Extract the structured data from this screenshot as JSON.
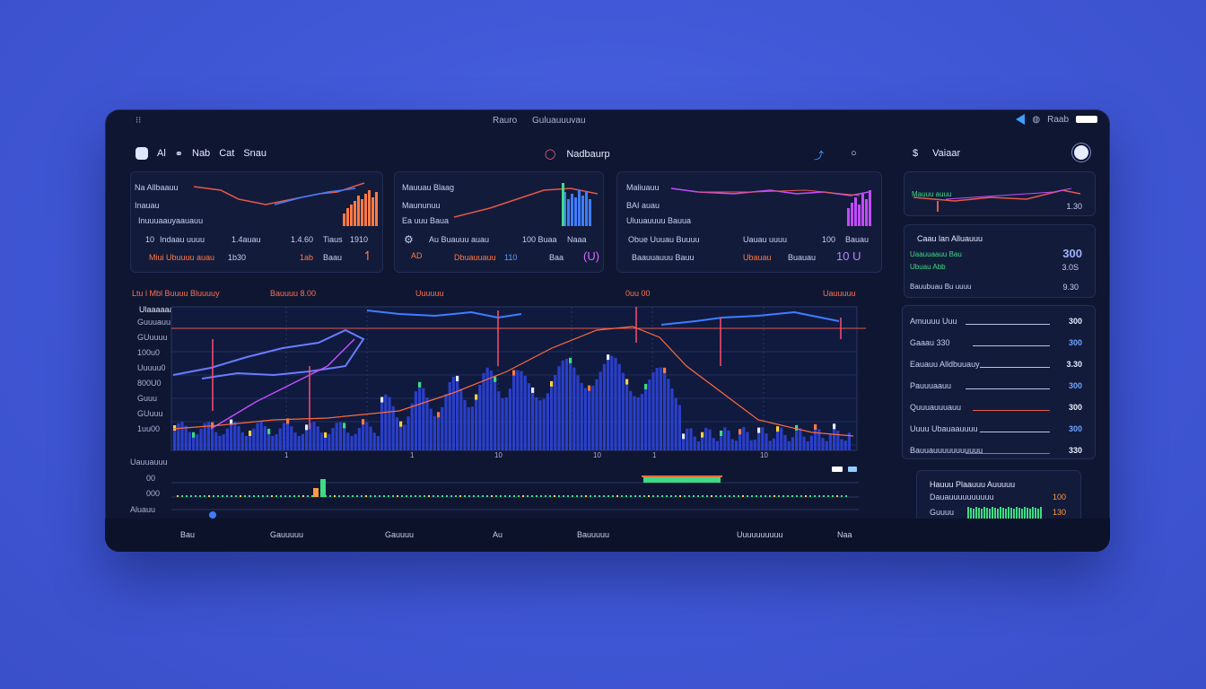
{
  "titlebar": {
    "left": "⁝⁝",
    "center": [
      "Rauro",
      "Guluauuuvau"
    ],
    "right_label": "Raab"
  },
  "nav": {
    "left": [
      "Al",
      "Nab",
      "Cat",
      "Snau"
    ],
    "center_label": "Nadbaurp",
    "right_label": "Vaiaar"
  },
  "cards": [
    {
      "l1": "Na Allbaauu",
      "l2": "Inauau",
      "l3": "Inuuuaauyaauauu",
      "r1": "10",
      "r2": "Indaau uuuu",
      "r3": "1.4auau",
      "r4": "1.4.60",
      "r5": "Tiaus",
      "r6": "1910",
      "b1": "Miui Ubuuuu auau",
      "b2": "1b30",
      "b3": "1ab",
      "b4": "Baau"
    },
    {
      "l1": "Mauuau Blaag",
      "l2": "Maununuu",
      "l3": "Ea uuu Baua",
      "r1": "Au Buauuu auau",
      "r2": "100 Buaa",
      "r3": "AD",
      "r4": "Naaa",
      "b1": "Dbuauuauu",
      "b2": "110",
      "b3": "Baa",
      "b4": "(U)"
    },
    {
      "l1": "Maliuauu",
      "l2": "BAI auau",
      "l3": "Uluuauuuu Bauua",
      "r1": "Obue Uuuau Buuuu",
      "r2": "Uauau uuuu",
      "r3": "100",
      "r4": "Bauau",
      "b1": "Baauuauuu Bauu",
      "b2": "Ubauau",
      "b3": "Buauau",
      "b4": "10 U"
    }
  ],
  "right_top": {
    "l1": "Mauuu auuu",
    "v1": "1.30"
  },
  "right_mid": {
    "title": "Caau lan Alluauuu",
    "v1": "300",
    "l1": "Uaauuaauu Bau",
    "v2": "3.0S",
    "l2": "Ubuau Abb",
    "l3": "Bauubuau Bu uuuu",
    "v3": "9.30"
  },
  "right_list": [
    {
      "label": "Amuuuu Uuu",
      "value": "300"
    },
    {
      "label": "Gaaau 330",
      "value": "300"
    },
    {
      "label": "Eauauu Alldbuuauy",
      "value": "3.30"
    },
    {
      "label": "Pauuuaauu",
      "value": "300"
    },
    {
      "label": "Quuuauuuauu",
      "value": "300"
    },
    {
      "label": "Uuuu Ubauaauuuu",
      "value": "300"
    },
    {
      "label": "Bauuauuuuuuuuuuu",
      "value": "330"
    }
  ],
  "right_bottom": {
    "title": "Hauuu Plaauuu Auuuuu",
    "l1": "Dauauuuuuuuuuu",
    "v1": "100",
    "l2": "Guuuu",
    "v2": "130"
  },
  "main": {
    "top_labels": [
      "Ltu l Mbl Buuuu Bluuuuy",
      "Bauuuu 8.00",
      "Uuuuuu",
      "0uu 00",
      "Uauuuuu"
    ],
    "y_labels": [
      "Guuuauu",
      "GUuuuu",
      "100u0",
      "Uuuuu0",
      "800U0",
      "Guuu",
      "GUuuu",
      "1uu00"
    ],
    "legend": "Ulaaaaaabbag",
    "sub_title": "Uauuauuu",
    "sub_labels": [
      "00",
      "000",
      "Aluauu"
    ],
    "x_ticks": [
      "1",
      "1",
      "10",
      "10",
      "1",
      "10"
    ]
  },
  "footer": [
    "Bau",
    "Gauuuuu",
    "Gauuuu",
    "Au",
    "Bauuuuu",
    "Uuuuuuuuuu",
    "Naa"
  ]
}
